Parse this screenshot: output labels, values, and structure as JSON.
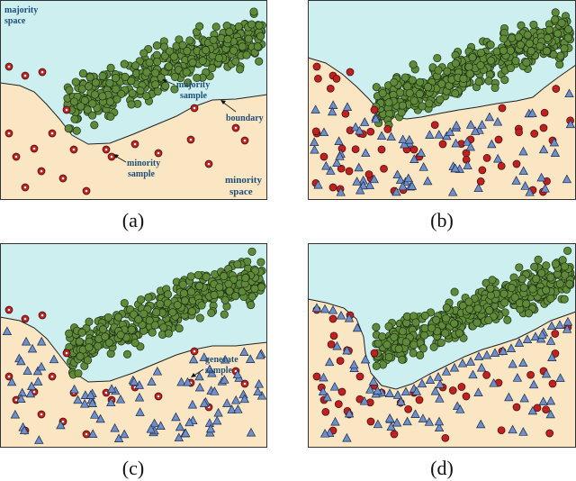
{
  "colors": {
    "majority_bg": "#cdeff0",
    "minority_bg": "#fbe6c3",
    "majority_point": "#5e8a3a",
    "minority_point": "#c0201f",
    "generated_point": "#6f8fc9",
    "annotation_text": "#1f4e79"
  },
  "panels": [
    {
      "label": "(a)",
      "annotations": {
        "majority_space": [
          "majority",
          "space"
        ],
        "majority_sample": [
          "majority",
          "sample"
        ],
        "boundary": "boundary",
        "minority_sample": [
          "minority",
          "sample"
        ],
        "minority_space": [
          "minority",
          "space"
        ]
      }
    },
    {
      "label": "(b)"
    },
    {
      "label": "(c)",
      "annotations": {
        "generate_sample": [
          "generate",
          "sample"
        ]
      }
    },
    {
      "label": "(d)"
    }
  ],
  "icons": {
    "majority_sample": "green-circle",
    "minority_sample": "red-circle",
    "generated_sample": "blue-triangle"
  }
}
